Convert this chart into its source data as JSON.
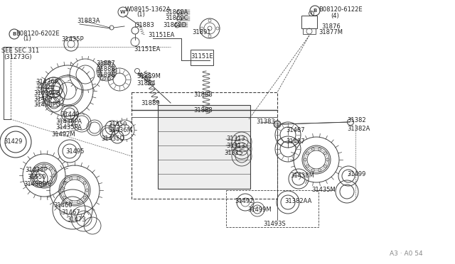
{
  "bg_color": "#ffffff",
  "line_color": "#404040",
  "text_color": "#222222",
  "fig_width": 6.4,
  "fig_height": 3.72,
  "dpi": 100,
  "watermark": "A3 · A0 54",
  "labels": [
    [
      "W08915-1362A",
      176,
      13,
      6.0
    ],
    [
      "(1)",
      192,
      21,
      6.0
    ],
    [
      "31883A",
      108,
      30,
      6.0
    ],
    [
      "31883",
      190,
      36,
      6.0
    ],
    [
      "31860A",
      232,
      17,
      6.0
    ],
    [
      "31860C",
      232,
      26,
      6.0
    ],
    [
      "31860D",
      229,
      35,
      6.0
    ],
    [
      "B08120-6202E",
      22,
      47,
      6.0
    ],
    [
      "(1)",
      32,
      55,
      6.0
    ],
    [
      "31435P",
      86,
      55,
      6.0
    ],
    [
      "31151EA",
      208,
      50,
      6.0
    ],
    [
      "31891",
      270,
      46,
      6.0
    ],
    [
      "SEE SEC.311",
      2,
      72,
      6.0
    ],
    [
      "(31273G)",
      5,
      80,
      6.0
    ],
    [
      "31151EA",
      188,
      70,
      6.0
    ],
    [
      "31151E",
      268,
      80,
      6.0
    ],
    [
      "31887",
      135,
      90,
      6.0
    ],
    [
      "31888",
      135,
      98,
      6.0
    ],
    [
      "31898",
      135,
      106,
      6.0
    ],
    [
      "31889M",
      192,
      108,
      6.0
    ],
    [
      "31884",
      192,
      117,
      6.0
    ],
    [
      "31436P",
      50,
      115,
      6.0
    ],
    [
      "31420",
      50,
      123,
      6.0
    ],
    [
      "31439PB",
      47,
      131,
      6.0
    ],
    [
      "31469",
      47,
      140,
      6.0
    ],
    [
      "31438PC",
      47,
      148,
      6.0
    ],
    [
      "31888",
      272,
      134,
      6.0
    ],
    [
      "31889",
      198,
      145,
      6.0
    ],
    [
      "31888",
      272,
      155,
      6.0
    ],
    [
      "31440",
      85,
      162,
      6.0
    ],
    [
      "31436PA",
      78,
      171,
      6.0
    ],
    [
      "31435PA",
      78,
      180,
      6.0
    ],
    [
      "31492M",
      72,
      189,
      6.0
    ],
    [
      "31450",
      152,
      175,
      6.0
    ],
    [
      "31436M",
      152,
      184,
      6.0
    ],
    [
      "31435D",
      142,
      196,
      6.0
    ],
    [
      "31429",
      5,
      200,
      6.0
    ],
    [
      "31495",
      92,
      213,
      6.0
    ],
    [
      "31438P",
      35,
      240,
      6.0
    ],
    [
      "31550",
      38,
      250,
      6.0
    ],
    [
      "31438PA",
      33,
      260,
      6.0
    ],
    [
      "31460",
      75,
      290,
      6.0
    ],
    [
      "31467",
      86,
      300,
      6.0
    ],
    [
      "31473",
      94,
      310,
      6.0
    ],
    [
      "B08120-6122E",
      448,
      14,
      6.0
    ],
    [
      "(4)",
      465,
      23,
      6.0
    ],
    [
      "31876",
      452,
      37,
      6.0
    ],
    [
      "31877M",
      448,
      46,
      6.0
    ],
    [
      "31383",
      360,
      172,
      6.0
    ],
    [
      "31382",
      488,
      170,
      6.0
    ],
    [
      "31487",
      402,
      183,
      6.0
    ],
    [
      "31382A",
      488,
      181,
      6.0
    ],
    [
      "31313",
      318,
      196,
      6.0
    ],
    [
      "31313",
      318,
      205,
      6.0
    ],
    [
      "31315",
      315,
      215,
      6.0
    ],
    [
      "31487",
      402,
      199,
      6.0
    ],
    [
      "31438M",
      408,
      247,
      6.0
    ],
    [
      "31499",
      488,
      245,
      6.0
    ],
    [
      "31435M",
      438,
      268,
      6.0
    ],
    [
      "31492",
      330,
      283,
      6.0
    ],
    [
      "31382AA",
      400,
      283,
      6.0
    ],
    [
      "31499M",
      348,
      296,
      6.0
    ],
    [
      "31493S",
      370,
      316,
      6.0
    ]
  ]
}
